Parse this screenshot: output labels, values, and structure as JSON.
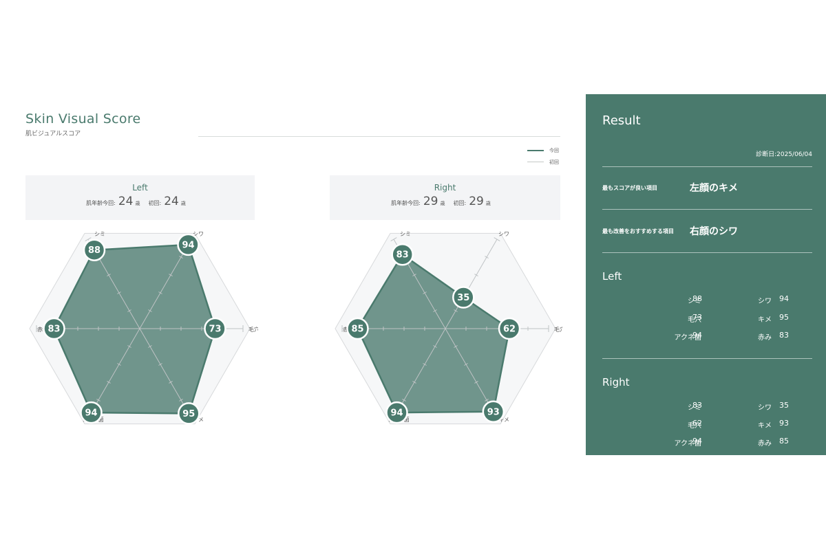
{
  "header": {
    "title": "Skin Visual Score",
    "subtitle": "肌ビジュアルスコア"
  },
  "legend": {
    "current": "今回",
    "first": "初回"
  },
  "faces": [
    {
      "name": "Left",
      "age_current_label": "肌年齢今回:",
      "age_current": "24",
      "age_first_label": "初回:",
      "age_first": "24",
      "age_unit": "歳"
    },
    {
      "name": "Right",
      "age_current_label": "肌年齢今回:",
      "age_current": "29",
      "age_first_label": "初回:",
      "age_first": "29",
      "age_unit": "歳"
    }
  ],
  "chart_data": [
    {
      "type": "radar",
      "categories": [
        "シミ",
        "シワ",
        "毛穴",
        "キメ",
        "アクネ菌",
        "赤み"
      ],
      "series": [
        {
          "name": "今回",
          "values": [
            88,
            94,
            73,
            95,
            94,
            83
          ]
        }
      ],
      "range": [
        0,
        100
      ],
      "color": "#4a7a6d"
    },
    {
      "type": "radar",
      "categories": [
        "シミ",
        "シワ",
        "毛穴",
        "キメ",
        "アクネ菌",
        "赤み"
      ],
      "series": [
        {
          "name": "今回",
          "values": [
            83,
            35,
            62,
            93,
            94,
            85
          ]
        }
      ],
      "range": [
        0,
        100
      ],
      "color": "#4a7a6d"
    }
  ],
  "result": {
    "title": "Result",
    "date": "診断日:2025/06/04",
    "best_label": "最もスコアが良い項目",
    "best_value": "左顔のキメ",
    "improve_label": "最も改善をおすすめする項目",
    "improve_value": "右顔のシワ",
    "left": {
      "title": "Left",
      "items": [
        {
          "label": "シミ",
          "value": "88"
        },
        {
          "label": "シワ",
          "value": "94"
        },
        {
          "label": "毛穴",
          "value": "73"
        },
        {
          "label": "キメ",
          "value": "95"
        },
        {
          "label": "アクネ菌",
          "value": "94"
        },
        {
          "label": "赤み",
          "value": "83"
        }
      ]
    },
    "right": {
      "title": "Right",
      "items": [
        {
          "label": "シミ",
          "value": "83"
        },
        {
          "label": "シワ",
          "value": "35"
        },
        {
          "label": "毛穴",
          "value": "62"
        },
        {
          "label": "キメ",
          "value": "93"
        },
        {
          "label": "アクネ菌",
          "value": "94"
        },
        {
          "label": "赤み",
          "value": "85"
        }
      ]
    }
  },
  "colors": {
    "accent": "#4a7a6d",
    "panel_bg": "#f3f4f6"
  }
}
